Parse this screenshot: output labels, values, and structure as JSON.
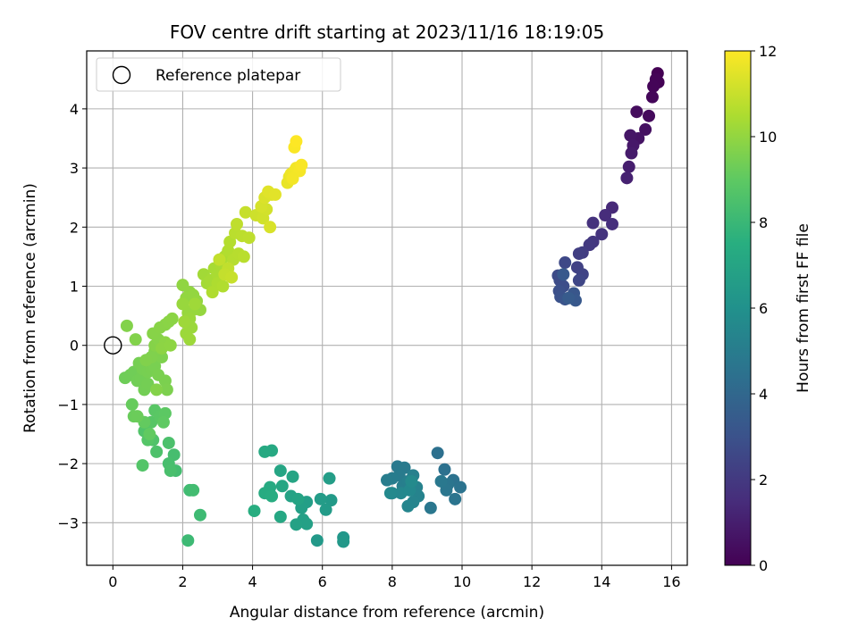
{
  "chart_data": {
    "type": "scatter",
    "title": "FOV centre drift starting at 2023/11/16 18:19:05",
    "xlabel": "Angular distance from reference (arcmin)",
    "ylabel": "Rotation from reference (arcmin)",
    "xlim": [
      -0.75,
      16.45
    ],
    "ylim": [
      -3.72,
      4.98
    ],
    "xticks": [
      0,
      2,
      4,
      6,
      8,
      10,
      12,
      14,
      16
    ],
    "yticks": [
      -3,
      -2,
      -1,
      0,
      1,
      2,
      3,
      4
    ],
    "xtick_labels": [
      "0",
      "2",
      "4",
      "6",
      "8",
      "10",
      "12",
      "14",
      "16"
    ],
    "ytick_labels": [
      "−3",
      "−2",
      "−1",
      "0",
      "1",
      "2",
      "3",
      "4"
    ],
    "grid": true,
    "colormap": "viridis",
    "colorbar": {
      "label": "Hours from first FF file",
      "range": [
        0,
        12
      ],
      "ticks": [
        0,
        2,
        4,
        6,
        8,
        10,
        12
      ],
      "tick_labels": [
        "0",
        "2",
        "4",
        "6",
        "8",
        "10",
        "12"
      ]
    },
    "legend": {
      "position": "top-left",
      "entries": [
        {
          "label": "Reference platepar",
          "marker": "open-circle"
        }
      ]
    },
    "reference_point": {
      "x": 0,
      "y": 0
    },
    "points": [
      {
        "x": 15.6,
        "y": 4.6,
        "h": 0.0
      },
      {
        "x": 15.62,
        "y": 4.45,
        "h": 0.05
      },
      {
        "x": 15.55,
        "y": 4.5,
        "h": 0.1
      },
      {
        "x": 15.48,
        "y": 4.38,
        "h": 0.15
      },
      {
        "x": 15.45,
        "y": 4.2,
        "h": 0.2
      },
      {
        "x": 15.35,
        "y": 3.88,
        "h": 0.3
      },
      {
        "x": 15.0,
        "y": 3.95,
        "h": 0.4
      },
      {
        "x": 15.25,
        "y": 3.65,
        "h": 0.5
      },
      {
        "x": 15.05,
        "y": 3.5,
        "h": 0.6
      },
      {
        "x": 14.82,
        "y": 3.55,
        "h": 0.7
      },
      {
        "x": 14.9,
        "y": 3.38,
        "h": 0.8
      },
      {
        "x": 14.85,
        "y": 3.25,
        "h": 0.9
      },
      {
        "x": 14.78,
        "y": 3.02,
        "h": 1.0
      },
      {
        "x": 14.72,
        "y": 2.83,
        "h": 1.1
      },
      {
        "x": 14.3,
        "y": 2.33,
        "h": 1.4
      },
      {
        "x": 14.1,
        "y": 2.2,
        "h": 1.5
      },
      {
        "x": 14.3,
        "y": 2.05,
        "h": 1.6
      },
      {
        "x": 13.75,
        "y": 2.07,
        "h": 1.7
      },
      {
        "x": 14.0,
        "y": 1.88,
        "h": 1.8
      },
      {
        "x": 13.75,
        "y": 1.75,
        "h": 1.9
      },
      {
        "x": 13.65,
        "y": 1.7,
        "h": 2.0
      },
      {
        "x": 13.45,
        "y": 1.57,
        "h": 2.1
      },
      {
        "x": 13.35,
        "y": 1.55,
        "h": 2.2
      },
      {
        "x": 13.3,
        "y": 1.32,
        "h": 2.3
      },
      {
        "x": 13.45,
        "y": 1.2,
        "h": 2.4
      },
      {
        "x": 13.35,
        "y": 1.1,
        "h": 2.5
      },
      {
        "x": 12.95,
        "y": 1.4,
        "h": 2.6
      },
      {
        "x": 12.75,
        "y": 1.18,
        "h": 2.7
      },
      {
        "x": 12.8,
        "y": 1.1,
        "h": 2.75
      },
      {
        "x": 12.9,
        "y": 1.0,
        "h": 2.8
      },
      {
        "x": 12.78,
        "y": 0.92,
        "h": 2.9
      },
      {
        "x": 12.82,
        "y": 0.82,
        "h": 3.0
      },
      {
        "x": 12.95,
        "y": 0.78,
        "h": 3.1
      },
      {
        "x": 13.2,
        "y": 0.88,
        "h": 3.2
      },
      {
        "x": 13.25,
        "y": 0.76,
        "h": 3.3
      },
      {
        "x": 12.9,
        "y": 1.2,
        "h": 3.35
      },
      {
        "x": 13.05,
        "y": 0.8,
        "h": 3.4
      },
      {
        "x": 9.3,
        "y": -1.82,
        "h": 4.4
      },
      {
        "x": 9.5,
        "y": -2.1,
        "h": 4.45
      },
      {
        "x": 9.75,
        "y": -2.28,
        "h": 4.5
      },
      {
        "x": 9.95,
        "y": -2.4,
        "h": 4.55
      },
      {
        "x": 9.8,
        "y": -2.6,
        "h": 4.6
      },
      {
        "x": 9.6,
        "y": -2.35,
        "h": 4.65
      },
      {
        "x": 9.55,
        "y": -2.45,
        "h": 4.7
      },
      {
        "x": 9.1,
        "y": -2.75,
        "h": 4.75
      },
      {
        "x": 9.4,
        "y": -2.3,
        "h": 4.8
      },
      {
        "x": 8.15,
        "y": -2.05,
        "h": 4.85
      },
      {
        "x": 8.35,
        "y": -2.07,
        "h": 4.9
      },
      {
        "x": 8.2,
        "y": -2.2,
        "h": 4.95
      },
      {
        "x": 8.0,
        "y": -2.25,
        "h": 5.0
      },
      {
        "x": 7.85,
        "y": -2.28,
        "h": 5.05
      },
      {
        "x": 8.3,
        "y": -2.38,
        "h": 5.1
      },
      {
        "x": 8.45,
        "y": -2.3,
        "h": 5.15
      },
      {
        "x": 8.6,
        "y": -2.2,
        "h": 5.2
      },
      {
        "x": 8.7,
        "y": -2.4,
        "h": 5.25
      },
      {
        "x": 8.75,
        "y": -2.55,
        "h": 5.3
      },
      {
        "x": 8.6,
        "y": -2.65,
        "h": 5.35
      },
      {
        "x": 8.45,
        "y": -2.72,
        "h": 5.4
      },
      {
        "x": 8.0,
        "y": -2.5,
        "h": 5.45
      },
      {
        "x": 8.25,
        "y": -2.5,
        "h": 5.5
      },
      {
        "x": 8.5,
        "y": -2.45,
        "h": 5.55
      },
      {
        "x": 7.95,
        "y": -2.5,
        "h": 5.6
      },
      {
        "x": 8.55,
        "y": -2.3,
        "h": 5.65
      },
      {
        "x": 6.6,
        "y": -3.25,
        "h": 6.3
      },
      {
        "x": 6.6,
        "y": -3.32,
        "h": 6.35
      },
      {
        "x": 5.85,
        "y": -3.3,
        "h": 6.4
      },
      {
        "x": 6.25,
        "y": -2.62,
        "h": 6.45
      },
      {
        "x": 6.1,
        "y": -2.78,
        "h": 6.5
      },
      {
        "x": 5.95,
        "y": -2.6,
        "h": 6.55
      },
      {
        "x": 6.2,
        "y": -2.25,
        "h": 6.6
      },
      {
        "x": 5.55,
        "y": -2.65,
        "h": 6.65
      },
      {
        "x": 5.4,
        "y": -2.75,
        "h": 6.7
      },
      {
        "x": 5.45,
        "y": -2.95,
        "h": 6.75
      },
      {
        "x": 5.55,
        "y": -3.02,
        "h": 6.8
      },
      {
        "x": 5.25,
        "y": -3.03,
        "h": 6.85
      },
      {
        "x": 5.1,
        "y": -2.55,
        "h": 6.9
      },
      {
        "x": 5.3,
        "y": -2.6,
        "h": 6.95
      },
      {
        "x": 5.15,
        "y": -2.22,
        "h": 7.0
      },
      {
        "x": 4.8,
        "y": -2.12,
        "h": 7.05
      },
      {
        "x": 4.85,
        "y": -2.38,
        "h": 7.1
      },
      {
        "x": 4.8,
        "y": -2.9,
        "h": 7.15
      },
      {
        "x": 4.55,
        "y": -1.78,
        "h": 7.2
      },
      {
        "x": 4.35,
        "y": -1.8,
        "h": 7.25
      },
      {
        "x": 4.5,
        "y": -2.4,
        "h": 7.3
      },
      {
        "x": 4.35,
        "y": -2.5,
        "h": 7.35
      },
      {
        "x": 4.55,
        "y": -2.55,
        "h": 7.4
      },
      {
        "x": 4.05,
        "y": -2.8,
        "h": 7.45
      },
      {
        "x": 2.15,
        "y": -3.3,
        "h": 8.1
      },
      {
        "x": 2.5,
        "y": -2.87,
        "h": 8.15
      },
      {
        "x": 2.2,
        "y": -2.45,
        "h": 8.2
      },
      {
        "x": 2.3,
        "y": -2.45,
        "h": 8.25
      },
      {
        "x": 1.8,
        "y": -2.12,
        "h": 8.3
      },
      {
        "x": 1.75,
        "y": -1.85,
        "h": 8.35
      },
      {
        "x": 1.6,
        "y": -2.0,
        "h": 8.4
      },
      {
        "x": 1.65,
        "y": -2.12,
        "h": 8.45
      },
      {
        "x": 1.6,
        "y": -1.65,
        "h": 8.5
      },
      {
        "x": 1.25,
        "y": -1.8,
        "h": 8.55
      },
      {
        "x": 1.15,
        "y": -1.6,
        "h": 8.6
      },
      {
        "x": 0.9,
        "y": -1.45,
        "h": 8.65
      },
      {
        "x": 0.85,
        "y": -2.03,
        "h": 8.7
      },
      {
        "x": 1.0,
        "y": -1.6,
        "h": 8.75
      },
      {
        "x": 1.1,
        "y": -1.3,
        "h": 8.8
      },
      {
        "x": 1.2,
        "y": -1.1,
        "h": 8.85
      },
      {
        "x": 1.35,
        "y": -1.2,
        "h": 8.9
      },
      {
        "x": 1.5,
        "y": -1.15,
        "h": 8.95
      },
      {
        "x": 1.45,
        "y": -1.3,
        "h": 9.0
      },
      {
        "x": 1.05,
        "y": -1.5,
        "h": 9.05
      },
      {
        "x": 0.9,
        "y": -1.3,
        "h": 9.1
      },
      {
        "x": 0.55,
        "y": -1.0,
        "h": 9.15
      },
      {
        "x": 0.6,
        "y": -1.2,
        "h": 9.2
      },
      {
        "x": 0.7,
        "y": -1.2,
        "h": 9.25
      },
      {
        "x": 0.35,
        "y": -0.55,
        "h": 9.3
      },
      {
        "x": 0.5,
        "y": -0.5,
        "h": 9.32
      },
      {
        "x": 0.6,
        "y": -0.45,
        "h": 9.34
      },
      {
        "x": 0.7,
        "y": -0.6,
        "h": 9.36
      },
      {
        "x": 0.8,
        "y": -0.55,
        "h": 9.38
      },
      {
        "x": 0.9,
        "y": -0.75,
        "h": 9.4
      },
      {
        "x": 1.0,
        "y": -0.65,
        "h": 9.42
      },
      {
        "x": 0.75,
        "y": -0.3,
        "h": 9.44
      },
      {
        "x": 0.85,
        "y": -0.4,
        "h": 9.46
      },
      {
        "x": 1.0,
        "y": -0.45,
        "h": 9.48
      },
      {
        "x": 1.1,
        "y": -0.4,
        "h": 9.5
      },
      {
        "x": 1.2,
        "y": -0.35,
        "h": 9.52
      },
      {
        "x": 1.3,
        "y": -0.5,
        "h": 9.54
      },
      {
        "x": 1.5,
        "y": -0.6,
        "h": 9.56
      },
      {
        "x": 1.55,
        "y": -0.75,
        "h": 9.58
      },
      {
        "x": 1.4,
        "y": -0.2,
        "h": 9.6
      },
      {
        "x": 1.2,
        "y": -0.1,
        "h": 9.62
      },
      {
        "x": 1.1,
        "y": -0.2,
        "h": 9.64
      },
      {
        "x": 0.95,
        "y": -0.25,
        "h": 9.66
      },
      {
        "x": 0.65,
        "y": 0.1,
        "h": 9.68
      },
      {
        "x": 0.4,
        "y": 0.33,
        "h": 9.7
      },
      {
        "x": 1.25,
        "y": -0.75,
        "h": 9.72
      },
      {
        "x": 1.2,
        "y": 0.0,
        "h": 9.74
      },
      {
        "x": 1.3,
        "y": 0.1,
        "h": 9.76
      },
      {
        "x": 1.15,
        "y": 0.2,
        "h": 9.78
      },
      {
        "x": 1.35,
        "y": 0.3,
        "h": 9.8
      },
      {
        "x": 1.5,
        "y": 0.35,
        "h": 9.82
      },
      {
        "x": 1.6,
        "y": 0.4,
        "h": 9.84
      },
      {
        "x": 1.7,
        "y": 0.45,
        "h": 9.86
      },
      {
        "x": 1.5,
        "y": 0.05,
        "h": 9.88
      },
      {
        "x": 1.4,
        "y": -0.05,
        "h": 9.9
      },
      {
        "x": 1.65,
        "y": 0.0,
        "h": 9.92
      },
      {
        "x": 2.0,
        "y": 1.02,
        "h": 9.95
      },
      {
        "x": 2.2,
        "y": 0.9,
        "h": 9.97
      },
      {
        "x": 2.1,
        "y": 0.8,
        "h": 9.99
      },
      {
        "x": 2.3,
        "y": 0.85,
        "h": 10.01
      },
      {
        "x": 2.4,
        "y": 0.75,
        "h": 10.03
      },
      {
        "x": 2.5,
        "y": 0.6,
        "h": 10.05
      },
      {
        "x": 2.3,
        "y": 0.6,
        "h": 10.07
      },
      {
        "x": 2.15,
        "y": 0.55,
        "h": 10.09
      },
      {
        "x": 2.0,
        "y": 0.7,
        "h": 10.11
      },
      {
        "x": 2.2,
        "y": 0.45,
        "h": 10.13
      },
      {
        "x": 2.25,
        "y": 0.3,
        "h": 10.15
      },
      {
        "x": 2.1,
        "y": 0.2,
        "h": 10.17
      },
      {
        "x": 2.2,
        "y": 0.1,
        "h": 10.19
      },
      {
        "x": 2.05,
        "y": 0.4,
        "h": 10.21
      },
      {
        "x": 2.35,
        "y": 0.7,
        "h": 10.23
      },
      {
        "x": 2.6,
        "y": 1.2,
        "h": 10.3
      },
      {
        "x": 2.7,
        "y": 1.05,
        "h": 10.33
      },
      {
        "x": 2.8,
        "y": 1.1,
        "h": 10.36
      },
      {
        "x": 2.9,
        "y": 1.3,
        "h": 10.39
      },
      {
        "x": 3.0,
        "y": 1.2,
        "h": 10.42
      },
      {
        "x": 3.1,
        "y": 1.35,
        "h": 10.45
      },
      {
        "x": 3.2,
        "y": 1.5,
        "h": 10.48
      },
      {
        "x": 3.0,
        "y": 1.05,
        "h": 10.51
      },
      {
        "x": 2.85,
        "y": 0.9,
        "h": 10.54
      },
      {
        "x": 3.15,
        "y": 1.0,
        "h": 10.57
      },
      {
        "x": 3.3,
        "y": 1.6,
        "h": 10.6
      },
      {
        "x": 3.35,
        "y": 1.75,
        "h": 10.63
      },
      {
        "x": 3.45,
        "y": 1.45,
        "h": 10.66
      },
      {
        "x": 3.6,
        "y": 1.55,
        "h": 10.69
      },
      {
        "x": 3.75,
        "y": 1.5,
        "h": 10.72
      },
      {
        "x": 3.5,
        "y": 1.9,
        "h": 10.75
      },
      {
        "x": 3.7,
        "y": 1.85,
        "h": 10.78
      },
      {
        "x": 3.9,
        "y": 1.82,
        "h": 10.81
      },
      {
        "x": 3.55,
        "y": 2.05,
        "h": 10.84
      },
      {
        "x": 3.3,
        "y": 1.3,
        "h": 10.87
      },
      {
        "x": 3.05,
        "y": 1.45,
        "h": 10.9
      },
      {
        "x": 3.2,
        "y": 1.2,
        "h": 10.93
      },
      {
        "x": 3.8,
        "y": 2.25,
        "h": 10.96
      },
      {
        "x": 3.4,
        "y": 1.15,
        "h": 10.99
      },
      {
        "x": 4.1,
        "y": 2.2,
        "h": 11.1
      },
      {
        "x": 4.3,
        "y": 2.15,
        "h": 11.15
      },
      {
        "x": 4.4,
        "y": 2.3,
        "h": 11.2
      },
      {
        "x": 4.25,
        "y": 2.35,
        "h": 11.25
      },
      {
        "x": 4.5,
        "y": 2.0,
        "h": 11.3
      },
      {
        "x": 4.35,
        "y": 2.5,
        "h": 11.35
      },
      {
        "x": 4.55,
        "y": 2.55,
        "h": 11.4
      },
      {
        "x": 4.45,
        "y": 2.6,
        "h": 11.45
      },
      {
        "x": 4.65,
        "y": 2.55,
        "h": 11.5
      },
      {
        "x": 5.0,
        "y": 2.75,
        "h": 11.6
      },
      {
        "x": 5.05,
        "y": 2.85,
        "h": 11.65
      },
      {
        "x": 5.1,
        "y": 2.9,
        "h": 11.7
      },
      {
        "x": 5.2,
        "y": 2.95,
        "h": 11.75
      },
      {
        "x": 5.25,
        "y": 3.0,
        "h": 11.8
      },
      {
        "x": 5.35,
        "y": 2.95,
        "h": 11.85
      },
      {
        "x": 5.4,
        "y": 3.05,
        "h": 11.9
      },
      {
        "x": 5.2,
        "y": 3.35,
        "h": 11.95
      },
      {
        "x": 5.25,
        "y": 3.45,
        "h": 12.0
      },
      {
        "x": 5.15,
        "y": 2.82,
        "h": 11.82
      }
    ]
  }
}
